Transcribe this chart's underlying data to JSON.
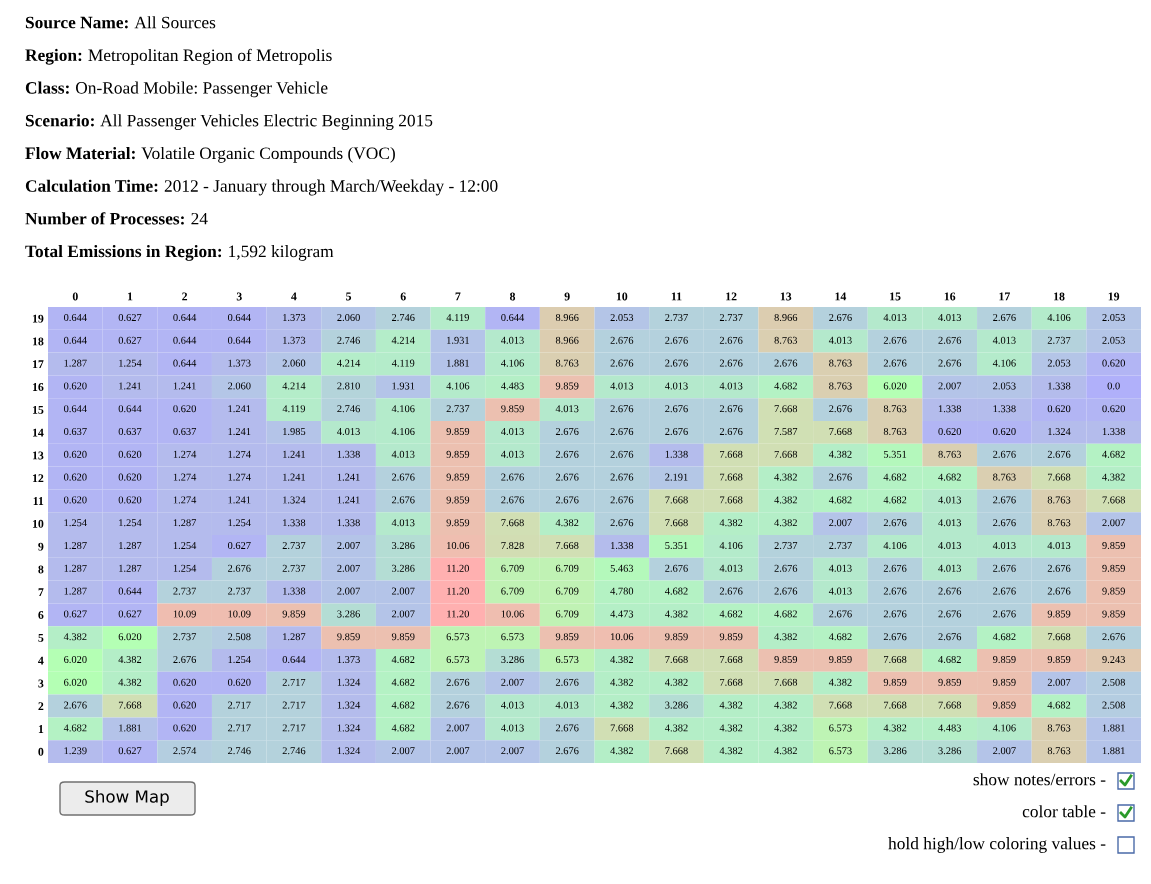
{
  "chart_data": {
    "type": "heatmap",
    "annotations": [
      "Source Name: All Sources",
      "Region: Metropolitan Region of Metropolis",
      "Class: On-Road Mobile: Passenger Vehicle",
      "Scenario: All Passenger Vehicles Electric Beginning 2015",
      "Flow Material: Volatile Organic Compounds (VOC)",
      "Calculation Time: 2012 - January through March/Weekday - 12:00",
      "Number of Processes: 24",
      "Total Emissions in Region: 1,592 kilogram",
      "Show Map",
      "show notes/errors -",
      "color table -",
      "hold high/low coloring values -"
    ],
    "categories": [
      "0",
      "1",
      "2",
      "3",
      "4",
      "5",
      "6",
      "7",
      "8",
      "9",
      "10",
      "11",
      "12",
      "13",
      "14",
      "15",
      "16",
      "17",
      "18",
      "19"
    ],
    "y_categories": [
      "19",
      "18",
      "17",
      "16",
      "15",
      "14",
      "13",
      "12",
      "11",
      "10",
      "9",
      "8",
      "7",
      "6",
      "5",
      "4",
      "3",
      "2",
      "1",
      "0"
    ],
    "cells": [
      [
        0.644,
        0.627,
        0.644,
        0.644,
        1.373,
        2.06,
        2.746,
        4.119,
        0.644,
        8.966,
        2.053,
        2.737,
        2.737,
        8.966,
        2.676,
        4.013,
        4.013,
        2.676,
        4.106,
        2.053
      ],
      [
        0.644,
        0.627,
        0.644,
        0.644,
        1.373,
        2.746,
        4.214,
        1.931,
        4.013,
        8.966,
        2.676,
        2.676,
        2.676,
        8.763,
        4.013,
        2.676,
        2.676,
        4.013,
        2.737,
        2.053
      ],
      [
        1.287,
        1.254,
        0.644,
        1.373,
        2.06,
        4.214,
        4.119,
        1.881,
        4.106,
        8.763,
        2.676,
        2.676,
        2.676,
        2.676,
        8.763,
        2.676,
        2.676,
        4.106,
        2.053,
        0.62
      ],
      [
        0.62,
        1.241,
        1.241,
        2.06,
        4.214,
        2.81,
        1.931,
        4.106,
        4.483,
        9.859,
        4.013,
        4.013,
        4.013,
        4.682,
        8.763,
        6.02,
        2.007,
        2.053,
        1.338,
        0.0
      ],
      [
        0.644,
        0.644,
        0.62,
        1.241,
        4.119,
        2.746,
        4.106,
        2.737,
        9.859,
        4.013,
        2.676,
        2.676,
        2.676,
        7.668,
        2.676,
        8.763,
        1.338,
        1.338,
        0.62,
        0.62
      ],
      [
        0.637,
        0.637,
        0.637,
        1.241,
        1.985,
        4.013,
        4.106,
        9.859,
        4.013,
        2.676,
        2.676,
        2.676,
        2.676,
        7.587,
        7.668,
        8.763,
        0.62,
        0.62,
        1.324,
        1.338
      ],
      [
        0.62,
        0.62,
        1.274,
        1.274,
        1.241,
        1.338,
        4.013,
        9.859,
        4.013,
        2.676,
        2.676,
        1.338,
        7.668,
        7.668,
        4.382,
        5.351,
        8.763,
        2.676,
        2.676,
        4.682
      ],
      [
        0.62,
        0.62,
        1.274,
        1.274,
        1.241,
        1.241,
        2.676,
        9.859,
        2.676,
        2.676,
        2.676,
        2.191,
        7.668,
        4.382,
        2.676,
        4.682,
        4.682,
        8.763,
        7.668,
        4.382
      ],
      [
        0.62,
        0.62,
        1.274,
        1.241,
        1.324,
        1.241,
        2.676,
        9.859,
        2.676,
        2.676,
        2.676,
        7.668,
        7.668,
        4.382,
        4.682,
        4.682,
        4.013,
        2.676,
        8.763,
        7.668
      ],
      [
        1.254,
        1.254,
        1.287,
        1.254,
        1.338,
        1.338,
        4.013,
        9.859,
        7.668,
        4.382,
        2.676,
        7.668,
        4.382,
        4.382,
        2.007,
        2.676,
        4.013,
        2.676,
        8.763,
        2.007
      ],
      [
        1.287,
        1.287,
        1.254,
        0.627,
        2.737,
        2.007,
        3.286,
        10.06,
        7.828,
        7.668,
        1.338,
        5.351,
        4.106,
        2.737,
        2.737,
        4.106,
        4.013,
        4.013,
        4.013,
        9.859
      ],
      [
        1.287,
        1.287,
        1.254,
        2.676,
        2.737,
        2.007,
        3.286,
        11.2,
        6.709,
        6.709,
        5.463,
        2.676,
        4.013,
        2.676,
        4.013,
        2.676,
        4.013,
        2.676,
        2.676,
        9.859
      ],
      [
        1.287,
        0.644,
        2.737,
        2.737,
        1.338,
        2.007,
        2.007,
        11.2,
        6.709,
        6.709,
        4.78,
        4.682,
        2.676,
        2.676,
        4.013,
        2.676,
        2.676,
        2.676,
        2.676,
        9.859
      ],
      [
        0.627,
        0.627,
        10.09,
        10.09,
        9.859,
        3.286,
        2.007,
        11.2,
        10.06,
        6.709,
        4.473,
        4.382,
        4.682,
        4.682,
        2.676,
        2.676,
        2.676,
        2.676,
        9.859,
        9.859
      ],
      [
        4.382,
        6.02,
        2.737,
        2.508,
        1.287,
        9.859,
        9.859,
        6.573,
        6.573,
        9.859,
        10.06,
        9.859,
        9.859,
        4.382,
        4.682,
        2.676,
        2.676,
        4.682,
        7.668,
        2.676
      ],
      [
        6.02,
        4.382,
        2.676,
        1.254,
        0.644,
        1.373,
        4.682,
        6.573,
        3.286,
        6.573,
        4.382,
        7.668,
        7.668,
        9.859,
        9.859,
        7.668,
        4.682,
        9.859,
        9.859,
        9.243
      ],
      [
        6.02,
        4.382,
        0.62,
        0.62,
        2.717,
        1.324,
        4.682,
        2.676,
        2.007,
        2.676,
        4.382,
        4.382,
        7.668,
        7.668,
        4.382,
        9.859,
        9.859,
        9.859,
        2.007,
        2.508
      ],
      [
        2.676,
        7.668,
        0.62,
        2.717,
        2.717,
        1.324,
        4.682,
        2.676,
        4.013,
        4.013,
        4.382,
        3.286,
        4.382,
        4.382,
        7.668,
        7.668,
        7.668,
        9.859,
        4.682,
        2.508
      ],
      [
        4.682,
        1.881,
        0.62,
        2.717,
        2.717,
        1.324,
        4.682,
        2.007,
        4.013,
        2.676,
        7.668,
        4.382,
        4.382,
        4.382,
        6.573,
        4.382,
        4.483,
        4.106,
        8.763,
        1.881
      ],
      [
        1.239,
        0.627,
        2.574,
        2.746,
        2.746,
        1.324,
        2.007,
        2.007,
        2.007,
        2.676,
        4.382,
        7.668,
        4.382,
        4.382,
        6.573,
        3.286,
        3.286,
        2.007,
        8.763,
        1.881
      ]
    ],
    "cell_labels": [
      [
        "0.644",
        "0.627",
        "0.644",
        "0.644",
        "1.373",
        "2.060",
        "2.746",
        "4.119",
        "0.644",
        "8.966",
        "2.053",
        "2.737",
        "2.737",
        "8.966",
        "2.676",
        "4.013",
        "4.013",
        "2.676",
        "4.106",
        "2.053"
      ],
      [
        "0.644",
        "0.627",
        "0.644",
        "0.644",
        "1.373",
        "2.746",
        "4.214",
        "1.931",
        "4.013",
        "8.966",
        "2.676",
        "2.676",
        "2.676",
        "8.763",
        "4.013",
        "2.676",
        "2.676",
        "4.013",
        "2.737",
        "2.053"
      ],
      [
        "1.287",
        "1.254",
        "0.644",
        "1.373",
        "2.060",
        "4.214",
        "4.119",
        "1.881",
        "4.106",
        "8.763",
        "2.676",
        "2.676",
        "2.676",
        "2.676",
        "8.763",
        "2.676",
        "2.676",
        "4.106",
        "2.053",
        "0.620"
      ],
      [
        "0.620",
        "1.241",
        "1.241",
        "2.060",
        "4.214",
        "2.810",
        "1.931",
        "4.106",
        "4.483",
        "9.859",
        "4.013",
        "4.013",
        "4.013",
        "4.682",
        "8.763",
        "6.020",
        "2.007",
        "2.053",
        "1.338",
        "0.0"
      ],
      [
        "0.644",
        "0.644",
        "0.620",
        "1.241",
        "4.119",
        "2.746",
        "4.106",
        "2.737",
        "9.859",
        "4.013",
        "2.676",
        "2.676",
        "2.676",
        "7.668",
        "2.676",
        "8.763",
        "1.338",
        "1.338",
        "0.620",
        "0.620"
      ],
      [
        "0.637",
        "0.637",
        "0.637",
        "1.241",
        "1.985",
        "4.013",
        "4.106",
        "9.859",
        "4.013",
        "2.676",
        "2.676",
        "2.676",
        "2.676",
        "7.587",
        "7.668",
        "8.763",
        "0.620",
        "0.620",
        "1.324",
        "1.338"
      ],
      [
        "0.620",
        "0.620",
        "1.274",
        "1.274",
        "1.241",
        "1.338",
        "4.013",
        "9.859",
        "4.013",
        "2.676",
        "2.676",
        "1.338",
        "7.668",
        "7.668",
        "4.382",
        "5.351",
        "8.763",
        "2.676",
        "2.676",
        "4.682"
      ],
      [
        "0.620",
        "0.620",
        "1.274",
        "1.274",
        "1.241",
        "1.241",
        "2.676",
        "9.859",
        "2.676",
        "2.676",
        "2.676",
        "2.191",
        "7.668",
        "4.382",
        "2.676",
        "4.682",
        "4.682",
        "8.763",
        "7.668",
        "4.382"
      ],
      [
        "0.620",
        "0.620",
        "1.274",
        "1.241",
        "1.324",
        "1.241",
        "2.676",
        "9.859",
        "2.676",
        "2.676",
        "2.676",
        "7.668",
        "7.668",
        "4.382",
        "4.682",
        "4.682",
        "4.013",
        "2.676",
        "8.763",
        "7.668"
      ],
      [
        "1.254",
        "1.254",
        "1.287",
        "1.254",
        "1.338",
        "1.338",
        "4.013",
        "9.859",
        "7.668",
        "4.382",
        "2.676",
        "7.668",
        "4.382",
        "4.382",
        "2.007",
        "2.676",
        "4.013",
        "2.676",
        "8.763",
        "2.007"
      ],
      [
        "1.287",
        "1.287",
        "1.254",
        "0.627",
        "2.737",
        "2.007",
        "3.286",
        "10.06",
        "7.828",
        "7.668",
        "1.338",
        "5.351",
        "4.106",
        "2.737",
        "2.737",
        "4.106",
        "4.013",
        "4.013",
        "4.013",
        "9.859"
      ],
      [
        "1.287",
        "1.287",
        "1.254",
        "2.676",
        "2.737",
        "2.007",
        "3.286",
        "11.20",
        "6.709",
        "6.709",
        "5.463",
        "2.676",
        "4.013",
        "2.676",
        "4.013",
        "2.676",
        "4.013",
        "2.676",
        "2.676",
        "9.859"
      ],
      [
        "1.287",
        "0.644",
        "2.737",
        "2.737",
        "1.338",
        "2.007",
        "2.007",
        "11.20",
        "6.709",
        "6.709",
        "4.780",
        "4.682",
        "2.676",
        "2.676",
        "4.013",
        "2.676",
        "2.676",
        "2.676",
        "2.676",
        "9.859"
      ],
      [
        "0.627",
        "0.627",
        "10.09",
        "10.09",
        "9.859",
        "3.286",
        "2.007",
        "11.20",
        "10.06",
        "6.709",
        "4.473",
        "4.382",
        "4.682",
        "4.682",
        "2.676",
        "2.676",
        "2.676",
        "2.676",
        "9.859",
        "9.859"
      ],
      [
        "4.382",
        "6.020",
        "2.737",
        "2.508",
        "1.287",
        "9.859",
        "9.859",
        "6.573",
        "6.573",
        "9.859",
        "10.06",
        "9.859",
        "9.859",
        "4.382",
        "4.682",
        "2.676",
        "2.676",
        "4.682",
        "7.668",
        "2.676"
      ],
      [
        "6.020",
        "4.382",
        "2.676",
        "1.254",
        "0.644",
        "1.373",
        "4.682",
        "6.573",
        "3.286",
        "6.573",
        "4.382",
        "7.668",
        "7.668",
        "9.859",
        "9.859",
        "7.668",
        "4.682",
        "9.859",
        "9.859",
        "9.243"
      ],
      [
        "6.020",
        "4.382",
        "0.620",
        "0.620",
        "2.717",
        "1.324",
        "4.682",
        "2.676",
        "2.007",
        "2.676",
        "4.382",
        "4.382",
        "7.668",
        "7.668",
        "4.382",
        "9.859",
        "9.859",
        "9.859",
        "2.007",
        "2.508"
      ],
      [
        "2.676",
        "7.668",
        "0.620",
        "2.717",
        "2.717",
        "1.324",
        "4.682",
        "2.676",
        "4.013",
        "4.013",
        "4.382",
        "3.286",
        "4.382",
        "4.382",
        "7.668",
        "7.668",
        "7.668",
        "9.859",
        "4.682",
        "2.508"
      ],
      [
        "4.682",
        "1.881",
        "0.620",
        "2.717",
        "2.717",
        "1.324",
        "4.682",
        "2.007",
        "4.013",
        "2.676",
        "7.668",
        "4.382",
        "4.382",
        "4.382",
        "6.573",
        "4.382",
        "4.483",
        "4.106",
        "8.763",
        "1.881"
      ],
      [
        "1.239",
        "0.627",
        "2.574",
        "2.746",
        "2.746",
        "1.324",
        "2.007",
        "2.007",
        "2.007",
        "2.676",
        "4.382",
        "7.668",
        "4.382",
        "4.382",
        "6.573",
        "3.286",
        "3.286",
        "2.007",
        "8.763",
        "1.881"
      ]
    ]
  }
}
